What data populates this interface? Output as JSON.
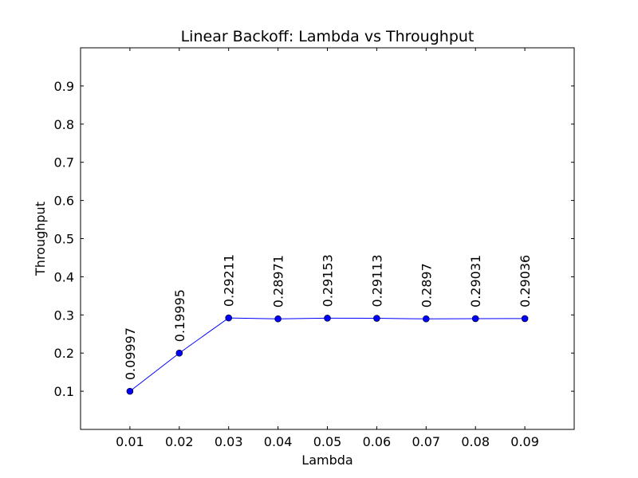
{
  "chart_data": {
    "type": "line",
    "title": "Linear Backoff: Lambda vs Throughput",
    "xlabel": "Lambda",
    "ylabel": "Throughput",
    "xlim": [
      0.0,
      0.1
    ],
    "ylim": [
      0.0,
      1.0
    ],
    "xticks": [
      "0.01",
      "0.02",
      "0.03",
      "0.04",
      "0.05",
      "0.06",
      "0.07",
      "0.08",
      "0.09"
    ],
    "yticks": [
      "0.1",
      "0.2",
      "0.3",
      "0.4",
      "0.5",
      "0.6",
      "0.7",
      "0.8",
      "0.9"
    ],
    "grid": false,
    "series": [
      {
        "color": "#0000ff",
        "marker": "circle",
        "x": [
          0.01,
          0.02,
          0.03,
          0.04,
          0.05,
          0.06,
          0.07,
          0.08,
          0.09
        ],
        "y": [
          0.09997,
          0.19995,
          0.29211,
          0.28971,
          0.29153,
          0.29113,
          0.2897,
          0.29031,
          0.29036
        ],
        "labels": [
          "0.09997",
          "0.19995",
          "0.29211",
          "0.28971",
          "0.29153",
          "0.29113",
          "0.2897",
          "0.29031",
          "0.29036"
        ]
      }
    ]
  }
}
